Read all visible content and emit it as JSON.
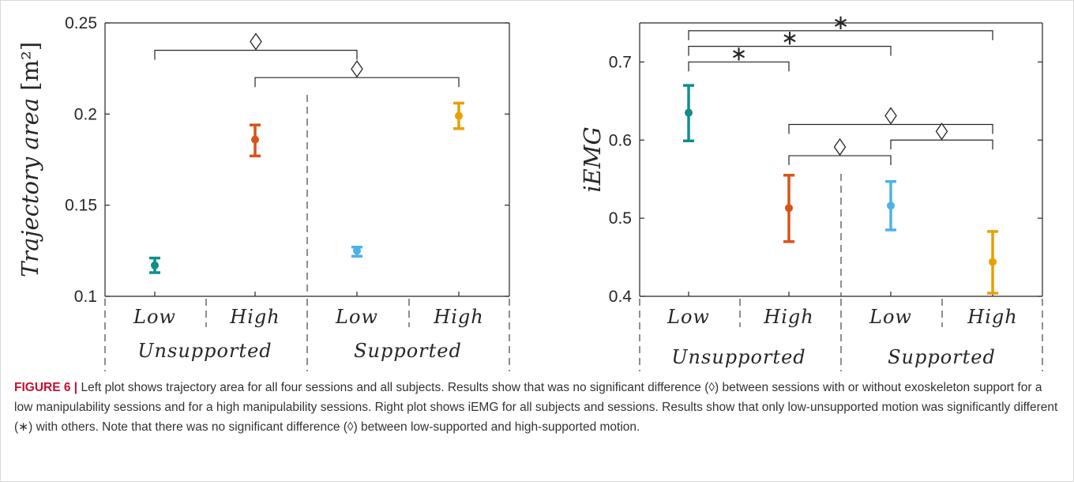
{
  "caption": {
    "label": "FIGURE 6 |",
    "text": "Left plot shows trajectory area for all four sessions and all subjects. Results show that was no significant difference (◊) between sessions with or without exoskeleton support for a low manipulability sessions and for a high manipulability sessions. Right plot shows iEMG for all subjects and sessions. Results show that only low-unsupported motion was significantly different (∗) with others. Note that there was no significant difference (◊) between low-supported and high-supported motion."
  },
  "symbols": {
    "no_difference": "◇",
    "significant": "∗"
  },
  "chart_data": [
    {
      "type": "scatter",
      "ylabel_text": "Trajectory area",
      "ylabel_unit": "[m²]",
      "ylim": [
        0.1,
        0.25
      ],
      "yticks": [
        "0.1",
        "0.15",
        "0.2",
        "0.25"
      ],
      "categories": [
        "Low",
        "High",
        "Low",
        "High"
      ],
      "groups": [
        "Unsupported",
        "Supported"
      ],
      "series": [
        {
          "category": "Low",
          "group": "Unsupported",
          "mean": 0.117,
          "lower": 0.113,
          "upper": 0.121,
          "color": "#0f8e8c"
        },
        {
          "category": "High",
          "group": "Unsupported",
          "mean": 0.186,
          "lower": 0.177,
          "upper": 0.194,
          "color": "#d95319"
        },
        {
          "category": "Low",
          "group": "Supported",
          "mean": 0.125,
          "lower": 0.122,
          "upper": 0.127,
          "color": "#4db3e6"
        },
        {
          "category": "High",
          "group": "Supported",
          "mean": 0.199,
          "lower": 0.192,
          "upper": 0.206,
          "color": "#e8a000"
        }
      ],
      "annotations": [
        {
          "from": 0,
          "to": 2,
          "y": 0.235,
          "symbol": "diamond"
        },
        {
          "from": 1,
          "to": 3,
          "y": 0.22,
          "symbol": "diamond"
        }
      ]
    },
    {
      "type": "scatter",
      "ylabel_text": "iEMG",
      "ylim": [
        0.4,
        0.75
      ],
      "yticks": [
        "0.4",
        "0.5",
        "0.6",
        "0.7"
      ],
      "categories": [
        "Low",
        "High",
        "Low",
        "High"
      ],
      "groups": [
        "Unsupported",
        "Supported"
      ],
      "series": [
        {
          "category": "Low",
          "group": "Unsupported",
          "mean": 0.635,
          "lower": 0.599,
          "upper": 0.67,
          "color": "#0f8e8c"
        },
        {
          "category": "High",
          "group": "Unsupported",
          "mean": 0.513,
          "lower": 0.47,
          "upper": 0.555,
          "color": "#d95319"
        },
        {
          "category": "Low",
          "group": "Supported",
          "mean": 0.516,
          "lower": 0.485,
          "upper": 0.547,
          "color": "#4db3e6"
        },
        {
          "category": "High",
          "group": "Supported",
          "mean": 0.444,
          "lower": 0.404,
          "upper": 0.483,
          "color": "#e8a000"
        }
      ],
      "annotations": [
        {
          "from": 0,
          "to": 1,
          "y": 0.7,
          "symbol": "star"
        },
        {
          "from": 0,
          "to": 2,
          "y": 0.72,
          "symbol": "star"
        },
        {
          "from": 0,
          "to": 3,
          "y": 0.74,
          "symbol": "star"
        },
        {
          "from": 1,
          "to": 3,
          "y": 0.62,
          "symbol": "diamond"
        },
        {
          "from": 2,
          "to": 3,
          "y": 0.6,
          "symbol": "diamond"
        },
        {
          "from": 1,
          "to": 2,
          "y": 0.58,
          "symbol": "diamond"
        }
      ]
    }
  ]
}
